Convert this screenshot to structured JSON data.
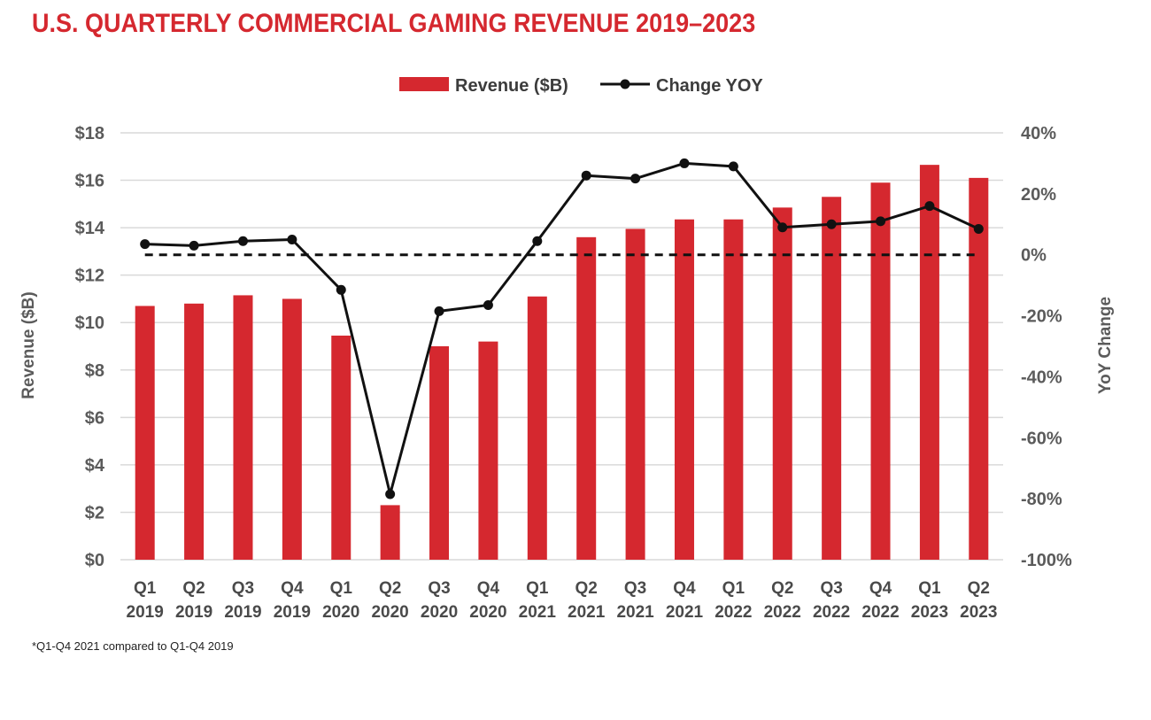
{
  "title": "U.S. QUARTERLY COMMERCIAL GAMING REVENUE 2019–2023",
  "footnote": "*Q1-Q4 2021 compared to Q1-Q4 2019",
  "legend": {
    "bar_label": "Revenue ($B)",
    "line_label": "Change YOY"
  },
  "colors": {
    "bar": "#d5282f",
    "line": "#111111",
    "title": "#d5282f",
    "grid": "#d9d9d9"
  },
  "chart_data": {
    "type": "bar",
    "categories": [
      "Q1 2019",
      "Q2 2019",
      "Q3 2019",
      "Q4 2019",
      "Q1 2020",
      "Q2 2020",
      "Q3 2020",
      "Q4 2020",
      "Q1 2021",
      "Q2 2021",
      "Q3 2021",
      "Q4 2021",
      "Q1 2022",
      "Q2 2022",
      "Q3 2022",
      "Q4 2022",
      "Q1 2023",
      "Q2 2023"
    ],
    "category_lines": [
      [
        "Q1",
        "2019"
      ],
      [
        "Q2",
        "2019"
      ],
      [
        "Q3",
        "2019"
      ],
      [
        "Q4",
        "2019"
      ],
      [
        "Q1",
        "2020"
      ],
      [
        "Q2",
        "2020"
      ],
      [
        "Q3",
        "2020"
      ],
      [
        "Q4",
        "2020"
      ],
      [
        "Q1",
        "2021"
      ],
      [
        "Q2",
        "2021"
      ],
      [
        "Q3",
        "2021"
      ],
      [
        "Q4",
        "2021"
      ],
      [
        "Q1",
        "2022"
      ],
      [
        "Q2",
        "2022"
      ],
      [
        "Q3",
        "2022"
      ],
      [
        "Q4",
        "2022"
      ],
      [
        "Q1",
        "2023"
      ],
      [
        "Q2",
        "2023"
      ]
    ],
    "series": [
      {
        "name": "Revenue ($B)",
        "type": "bar",
        "axis": "left",
        "values": [
          10.7,
          10.8,
          11.15,
          11.0,
          9.45,
          2.3,
          9.0,
          9.2,
          11.1,
          13.6,
          13.95,
          14.35,
          14.35,
          14.85,
          15.3,
          15.9,
          16.65,
          16.1
        ]
      },
      {
        "name": "Change YOY",
        "type": "line",
        "axis": "right",
        "values": [
          3.5,
          3.0,
          4.5,
          5.0,
          -11.5,
          -78.5,
          -18.5,
          -16.5,
          4.5,
          26.0,
          25.0,
          30.0,
          29.0,
          9.0,
          10.0,
          11.0,
          16.0,
          8.5
        ]
      }
    ],
    "reference_line": {
      "axis": "right",
      "value": 0,
      "style": "dashed"
    },
    "ylabel": "Revenue ($B)",
    "y2label": "YoY Change",
    "ylim": [
      0,
      18
    ],
    "y2lim": [
      -100,
      40
    ],
    "yticks": [
      "$0",
      "$2",
      "$4",
      "$6",
      "$8",
      "$10",
      "$12",
      "$14",
      "$16",
      "$18"
    ],
    "y2ticks": [
      "-100%",
      "-80%",
      "-60%",
      "-40%",
      "-20%",
      "0%",
      "20%",
      "40%"
    ],
    "grid": true,
    "legend_position": "top-center"
  }
}
